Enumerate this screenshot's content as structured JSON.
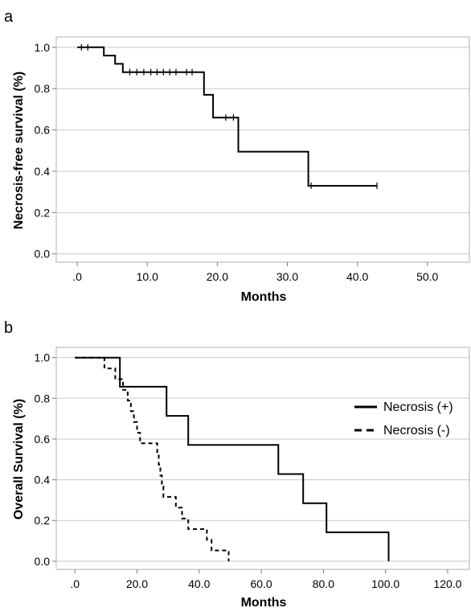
{
  "chart_data": [
    {
      "panel_label": "a",
      "type": "line",
      "xlabel": "Months",
      "ylabel": "Necrosis-free survival (%)",
      "xlim": [
        -3,
        56
      ],
      "ylim": [
        -0.04,
        1.05
      ],
      "xticks": [
        0,
        10,
        20,
        30,
        40,
        50
      ],
      "xtick_labels": [
        ".0",
        "10.0",
        "20.0",
        "30.0",
        "40.0",
        "50.0"
      ],
      "yticks": [
        0.0,
        0.2,
        0.4,
        0.6,
        0.8,
        1.0
      ],
      "ytick_labels": [
        "0.0",
        "0.2",
        "0.4",
        "0.6",
        "0.8",
        "1.0"
      ],
      "grid": "horizontal",
      "series": [
        {
          "style": "solid",
          "steps": [
            [
              0,
              1.0
            ],
            [
              3.8,
              0.96
            ],
            [
              5.4,
              0.92
            ],
            [
              6.5,
              0.88
            ],
            [
              18.1,
              0.77
            ],
            [
              19.4,
              0.66
            ],
            [
              23.0,
              0.495
            ],
            [
              33.0,
              0.33
            ],
            [
              42.8,
              0.33
            ]
          ],
          "censored": [
            [
              0.6,
              1.0
            ],
            [
              1.5,
              1.0
            ],
            [
              7.5,
              0.88
            ],
            [
              8.5,
              0.88
            ],
            [
              9.5,
              0.88
            ],
            [
              10.5,
              0.88
            ],
            [
              11.4,
              0.88
            ],
            [
              12.3,
              0.88
            ],
            [
              13.2,
              0.88
            ],
            [
              14.1,
              0.88
            ],
            [
              15.6,
              0.88
            ],
            [
              16.4,
              0.88
            ],
            [
              21.2,
              0.66
            ],
            [
              22.3,
              0.66
            ],
            [
              33.4,
              0.33
            ],
            [
              42.8,
              0.33
            ]
          ]
        }
      ]
    },
    {
      "panel_label": "b",
      "type": "line",
      "xlabel": "Months",
      "ylabel": "Overall Survival (%)",
      "xlim": [
        -6,
        127
      ],
      "ylim": [
        -0.04,
        1.05
      ],
      "xticks": [
        0,
        20,
        40,
        60,
        80,
        100,
        120
      ],
      "xtick_labels": [
        ".0",
        "20.0",
        "40.0",
        "60.0",
        "80.0",
        "100.0",
        "120.0"
      ],
      "yticks": [
        0.0,
        0.2,
        0.4,
        0.6,
        0.8,
        1.0
      ],
      "ytick_labels": [
        "0.0",
        "0.2",
        "0.4",
        "0.6",
        "0.8",
        "1.0"
      ],
      "grid": "horizontal",
      "legend_position": "right",
      "series": [
        {
          "name": "Necrosis (+)",
          "style": "solid",
          "steps": [
            [
              0,
              1.0
            ],
            [
              14.5,
              0.857
            ],
            [
              29.5,
              0.714
            ],
            [
              36.5,
              0.571
            ],
            [
              65.5,
              0.428
            ],
            [
              73.5,
              0.285
            ],
            [
              81.0,
              0.142
            ],
            [
              101.0,
              0.142
            ],
            [
              101.0,
              0.0
            ]
          ]
        },
        {
          "name": "Necrosis (-)",
          "style": "dashed",
          "steps": [
            [
              0,
              1.0
            ],
            [
              9.5,
              0.947
            ],
            [
              13.0,
              0.894
            ],
            [
              15.5,
              0.842
            ],
            [
              17.0,
              0.789
            ],
            [
              18.0,
              0.737
            ],
            [
              19.0,
              0.684
            ],
            [
              20.0,
              0.631
            ],
            [
              21.0,
              0.579
            ],
            [
              26.5,
              0.526
            ],
            [
              27.0,
              0.474
            ],
            [
              27.5,
              0.421
            ],
            [
              28.0,
              0.368
            ],
            [
              28.5,
              0.316
            ],
            [
              32.5,
              0.263
            ],
            [
              34.5,
              0.21
            ],
            [
              36.5,
              0.158
            ],
            [
              42.5,
              0.105
            ],
            [
              44.0,
              0.053
            ],
            [
              49.5,
              0.0
            ]
          ]
        }
      ]
    }
  ]
}
